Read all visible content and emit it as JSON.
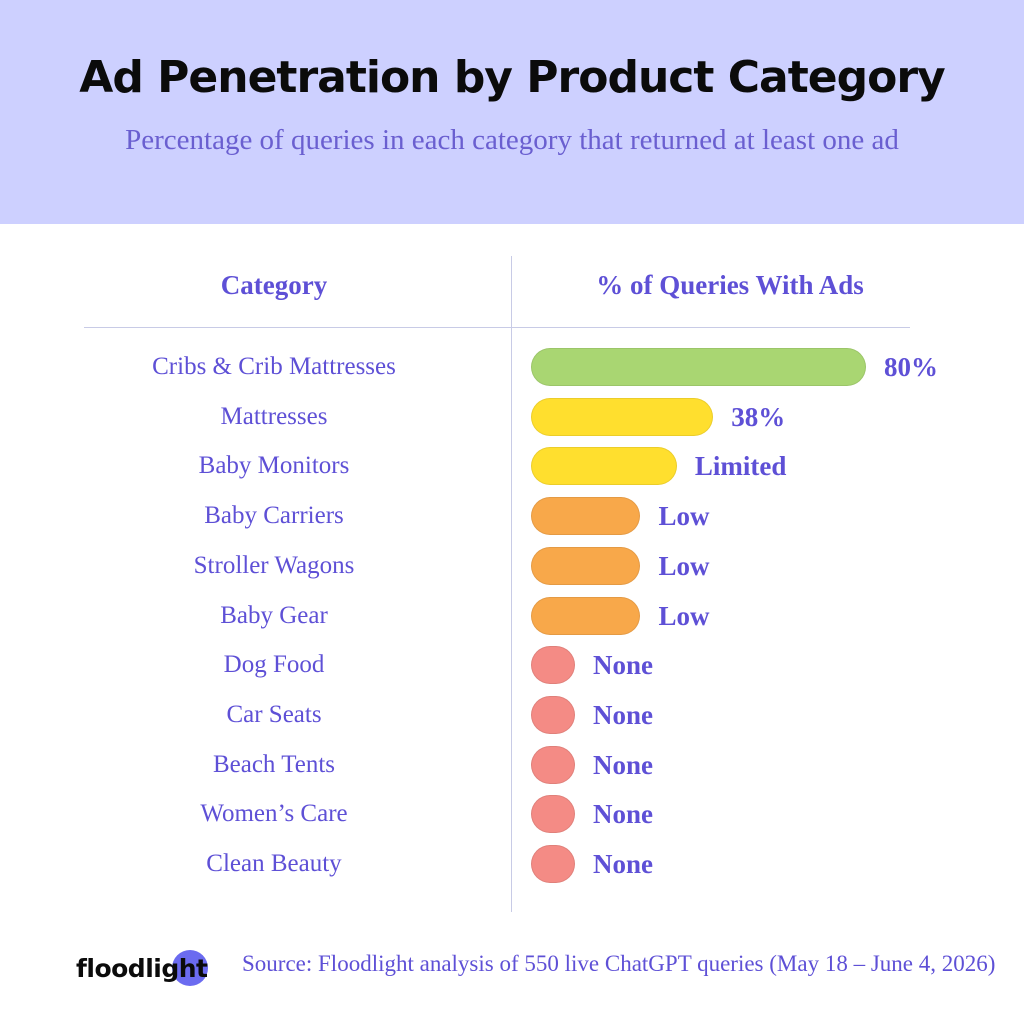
{
  "header": {
    "title": "Ad Penetration by Product Category",
    "subtitle": "Percentage of queries in each category that returned at least one ad"
  },
  "table": {
    "col_category": "Category",
    "col_value": "% of Queries With Ads"
  },
  "chart_data": {
    "type": "bar",
    "orientation": "horizontal",
    "categories": [
      "Cribs & Crib Mattresses",
      "Mattresses",
      "Baby Monitors",
      "Baby Carriers",
      "Stroller Wagons",
      "Baby Gear",
      "Dog Food",
      "Car Seats",
      "Beach Tents",
      "Women’s Care",
      "Clean Beauty"
    ],
    "values": [
      80,
      38,
      28,
      18,
      18,
      18,
      0,
      0,
      0,
      0,
      0
    ],
    "labels": [
      "80%",
      "38%",
      "Limited",
      "Low",
      "Low",
      "Low",
      "None",
      "None",
      "None",
      "None",
      "None"
    ],
    "colors": [
      "#a9d672",
      "#ffdf2e",
      "#ffdf2e",
      "#f8a84a",
      "#f8a84a",
      "#f8a84a",
      "#f48b85",
      "#f48b85",
      "#f48b85",
      "#f48b85",
      "#f48b85"
    ],
    "xlim": [
      0,
      80
    ],
    "grid": false,
    "legend": "none"
  },
  "footer": {
    "logo": "floodlight",
    "logo_accent": "#6b6bf0",
    "source": "Source: Floodlight analysis of 550 live ChatGPT queries (May 18 – June 4, 2026)"
  }
}
